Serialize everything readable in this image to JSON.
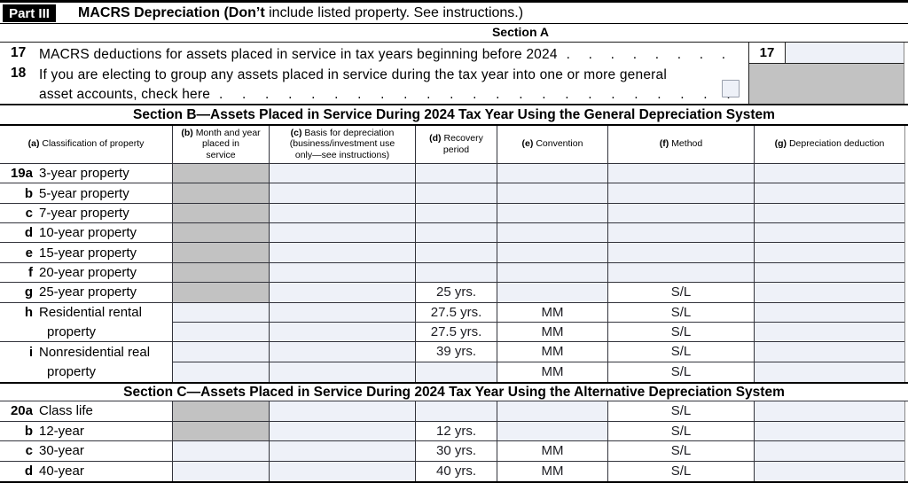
{
  "colors": {
    "shaded": "#c2c2c2",
    "input": "#eef1f8"
  },
  "header": {
    "part_label": "Part III",
    "title_bold": "MACRS Depreciation (Don’t",
    "title_rest": " include listed property. See instructions.)",
    "section_a_title": "Section A"
  },
  "line17": {
    "num": "17",
    "text": "MACRS deductions for assets placed in service in tax years beginning before 2024",
    "dots": ". . . . . . . .",
    "box_label": "17",
    "value": ""
  },
  "line18": {
    "num": "18",
    "line1": "If you are electing to group any assets placed in service during the tax year into one or more general",
    "line2": "asset accounts, check here",
    "dots": ". . . . . . . . . . . . . . . . . . . . . . .",
    "checkbox_checked": false
  },
  "sectionB": {
    "title": "Section B—Assets Placed in Service During 2024 Tax Year Using the General Depreciation System",
    "columns": [
      {
        "tag": "(a)",
        "label": "Classification of property"
      },
      {
        "tag": "(b)",
        "label": "Month and year\nplaced in\nservice"
      },
      {
        "tag": "(c)",
        "label": "Basis for depreciation\n(business/investment use\nonly—see instructions)"
      },
      {
        "tag": "(d)",
        "label": "Recovery\nperiod"
      },
      {
        "tag": "(e)",
        "label": "Convention"
      },
      {
        "tag": "(f)",
        "label": "Method"
      },
      {
        "tag": "(g)",
        "label": "Depreciation deduction"
      }
    ],
    "rows": [
      {
        "num": "19a",
        "label": "3-year property",
        "merge": false,
        "b_shaded": true,
        "d": "",
        "e": "",
        "f": ""
      },
      {
        "num": "b",
        "label": "5-year property",
        "merge": false,
        "b_shaded": true,
        "d": "",
        "e": "",
        "f": ""
      },
      {
        "num": "c",
        "label": "7-year property",
        "merge": false,
        "b_shaded": true,
        "d": "",
        "e": "",
        "f": ""
      },
      {
        "num": "d",
        "label": "10-year property",
        "merge": false,
        "b_shaded": true,
        "d": "",
        "e": "",
        "f": ""
      },
      {
        "num": "e",
        "label": "15-year property",
        "merge": false,
        "b_shaded": true,
        "d": "",
        "e": "",
        "f": ""
      },
      {
        "num": "f",
        "label": "20-year property",
        "merge": false,
        "b_shaded": true,
        "d": "",
        "e": "",
        "f": ""
      },
      {
        "num": "g",
        "label": "25-year property",
        "merge": false,
        "b_shaded": true,
        "d": "25 yrs.",
        "e": "",
        "f": "S/L"
      },
      {
        "num": "h",
        "label": "Residential rental",
        "merge": false,
        "b_shaded": false,
        "d": "27.5 yrs.",
        "e": "MM",
        "f": "S/L"
      },
      {
        "num": "",
        "label": "property",
        "merge": true,
        "b_shaded": false,
        "d": "27.5 yrs.",
        "e": "MM",
        "f": "S/L"
      },
      {
        "num": "i",
        "label": "Nonresidential real",
        "merge": false,
        "b_shaded": false,
        "d": "39 yrs.",
        "e": "MM",
        "f": "S/L"
      },
      {
        "num": "",
        "label": "property",
        "merge": true,
        "b_shaded": false,
        "d": "",
        "e": "MM",
        "f": "S/L"
      }
    ]
  },
  "sectionC": {
    "title": "Section C—Assets Placed in Service During 2024 Tax Year Using the Alternative Depreciation System",
    "rows": [
      {
        "num": "20a",
        "label": "Class life",
        "merge": false,
        "b_shaded": true,
        "d": "",
        "e": "",
        "f": "S/L"
      },
      {
        "num": "b",
        "label": "12-year",
        "merge": false,
        "b_shaded": true,
        "d": "12 yrs.",
        "e": "",
        "f": "S/L"
      },
      {
        "num": "c",
        "label": "30-year",
        "merge": false,
        "b_shaded": false,
        "d": "30 yrs.",
        "e": "MM",
        "f": "S/L"
      },
      {
        "num": "d",
        "label": "40-year",
        "merge": false,
        "b_shaded": false,
        "d": "40 yrs.",
        "e": "MM",
        "f": "S/L"
      }
    ]
  }
}
